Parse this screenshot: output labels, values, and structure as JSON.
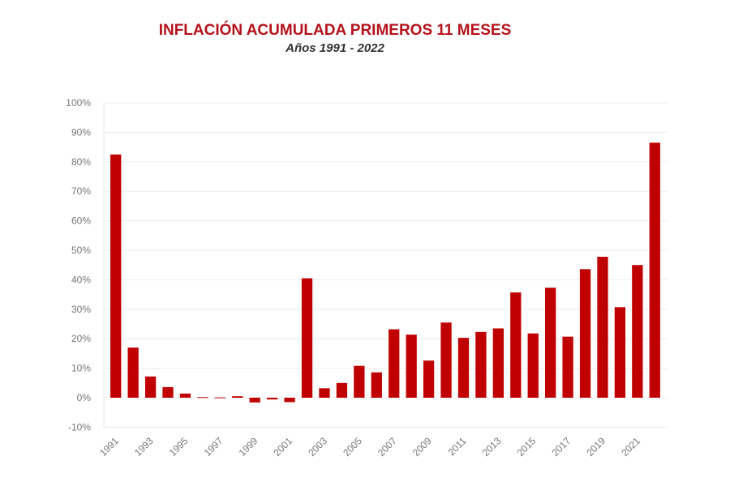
{
  "chart_data": {
    "type": "bar",
    "title": "INFLACIÓN ACUMULADA PRIMEROS 11 MESES",
    "subtitle": "Años 1991 - 2022",
    "xlabel": "",
    "ylabel": "",
    "ylim": [
      -10,
      100
    ],
    "yticks": [
      "-10%",
      "0%",
      "10%",
      "20%",
      "30%",
      "40%",
      "50%",
      "60%",
      "70%",
      "80%",
      "90%",
      "100%"
    ],
    "grid": true,
    "bar_color": "#c00000",
    "categories": [
      "1991",
      "1992",
      "1993",
      "1994",
      "1995",
      "1996",
      "1997",
      "1998",
      "1999",
      "2000",
      "2001",
      "2002",
      "2003",
      "2004",
      "2005",
      "2006",
      "2007",
      "2008",
      "2009",
      "2010",
      "2011",
      "2012",
      "2013",
      "2014",
      "2015",
      "2016",
      "2017",
      "2018",
      "2019",
      "2020",
      "2021",
      "2022"
    ],
    "xtick_labels": [
      "1991",
      "1993",
      "1995",
      "1997",
      "1999",
      "2001",
      "2003",
      "2005",
      "2007",
      "2009",
      "2011",
      "2013",
      "2015",
      "2017",
      "2019",
      "2021"
    ],
    "values": [
      82.5,
      17.0,
      7.2,
      3.6,
      1.4,
      0.2,
      0.1,
      0.5,
      -1.6,
      -0.6,
      -1.5,
      40.5,
      3.2,
      5.0,
      10.8,
      8.6,
      23.2,
      21.4,
      12.6,
      25.5,
      20.3,
      22.3,
      23.5,
      35.7,
      21.8,
      37.3,
      20.7,
      43.6,
      47.8,
      30.7,
      45.0,
      86.5
    ]
  }
}
